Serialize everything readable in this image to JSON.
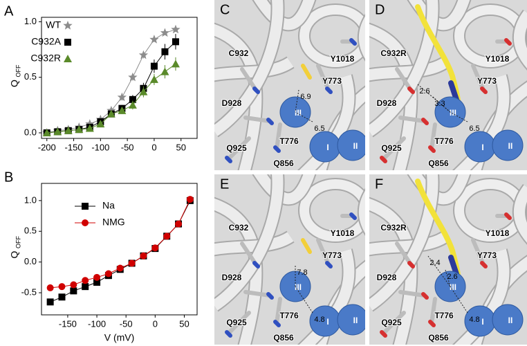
{
  "chart_data": [
    {
      "type": "line",
      "label": "A",
      "ylabel": "Q",
      "ylabel_subscript": "OFF",
      "x": [
        -200,
        -180,
        -160,
        -140,
        -120,
        -100,
        -80,
        -60,
        -40,
        -20,
        0,
        20,
        40
      ],
      "xlim": [
        -210,
        80
      ],
      "xticks": [
        -200,
        -150,
        -100,
        -50,
        0,
        50
      ],
      "ylim": [
        -0.05,
        1.04
      ],
      "yticks": [
        {
          "value": 0,
          "label": "0.0"
        },
        0.5,
        {
          "value": 1,
          "label": "1.0"
        }
      ],
      "legend": "upper left",
      "series": [
        {
          "name": "WT",
          "color": "#8c8c8c",
          "marker": "star",
          "values": [
            0.0,
            0.02,
            0.03,
            0.05,
            0.08,
            0.12,
            0.2,
            0.32,
            0.5,
            0.7,
            0.84,
            0.9,
            0.93
          ],
          "errors": [
            0.01,
            0.01,
            0.01,
            0.01,
            0.02,
            0.02,
            0.02,
            0.03,
            0.03,
            0.03,
            0.02,
            0.02,
            0.02
          ]
        },
        {
          "name": "C932A",
          "color": "#000000",
          "marker": "square",
          "values": [
            0.0,
            0.01,
            0.02,
            0.03,
            0.05,
            0.1,
            0.17,
            0.22,
            0.3,
            0.4,
            0.6,
            0.73,
            0.82
          ],
          "errors": [
            0.01,
            0.01,
            0.01,
            0.01,
            0.02,
            0.02,
            0.02,
            0.03,
            0.04,
            0.05,
            0.06,
            0.07,
            0.07
          ]
        },
        {
          "name": "C932R",
          "color": "#5a8a2a",
          "marker": "triangle",
          "values": [
            0.0,
            0.01,
            0.02,
            0.03,
            0.04,
            0.08,
            0.17,
            0.2,
            0.25,
            0.37,
            0.48,
            0.55,
            0.62
          ],
          "errors": [
            0.01,
            0.01,
            0.01,
            0.01,
            0.02,
            0.02,
            0.03,
            0.03,
            0.04,
            0.05,
            0.05,
            0.06,
            0.06
          ]
        }
      ]
    },
    {
      "type": "line",
      "label": "B",
      "ylabel": "Q",
      "ylabel_subscript": "OFF",
      "xlabel": "V (mV)",
      "x": [
        -180,
        -160,
        -140,
        -120,
        -100,
        -80,
        -60,
        -40,
        -20,
        0,
        20,
        40,
        60
      ],
      "xlim": [
        -195,
        72
      ],
      "xticks": [
        -150,
        -100,
        -50,
        0,
        50
      ],
      "ylim": [
        -0.86,
        1.28
      ],
      "yticks": [
        -0.5,
        {
          "value": 0,
          "label": "0.0"
        },
        0.5,
        {
          "value": 1,
          "label": "1.0"
        }
      ],
      "legend": "upper left",
      "series": [
        {
          "name": "Na",
          "color": "#000000",
          "marker": "square",
          "values": [
            -0.65,
            -0.57,
            -0.47,
            -0.4,
            -0.33,
            -0.22,
            -0.12,
            -0.02,
            0.1,
            0.22,
            0.42,
            0.62,
            1.0
          ]
        },
        {
          "name": "NMG",
          "color": "#d00000",
          "marker": "circle",
          "values": [
            -0.42,
            -0.4,
            -0.37,
            -0.3,
            -0.25,
            -0.19,
            -0.1,
            -0.02,
            0.1,
            0.23,
            0.42,
            0.62,
            1.02
          ]
        }
      ]
    }
  ],
  "panels": [
    {
      "letter": "C",
      "residues": [
        "C932",
        "Y1018",
        "Y773",
        "D928",
        "Q925",
        "T776",
        "Q856"
      ],
      "distances": [
        6.9,
        6.5
      ],
      "ions": [
        "III",
        "I",
        "II"
      ]
    },
    {
      "letter": "D",
      "residues": [
        "C932R",
        "Y1018",
        "Y773",
        "D928",
        "Q925",
        "T776",
        "Q856"
      ],
      "distances": [
        2.6,
        3.3,
        6.5
      ],
      "ions": [
        "III",
        "I",
        "II"
      ]
    },
    {
      "letter": "E",
      "residues": [
        "C932",
        "Y1018",
        "Y773",
        "D928",
        "Q925",
        "T776",
        "Q856"
      ],
      "distances": [
        7.8,
        4.8
      ],
      "ions": [
        "III",
        "I",
        "II"
      ]
    },
    {
      "letter": "F",
      "residues": [
        "C932R",
        "Y1018",
        "Y773",
        "D928",
        "Q925",
        "T776",
        "Q856"
      ],
      "distances": [
        2.4,
        2.6,
        4.8
      ],
      "ions": [
        "III",
        "I",
        "II"
      ]
    }
  ]
}
